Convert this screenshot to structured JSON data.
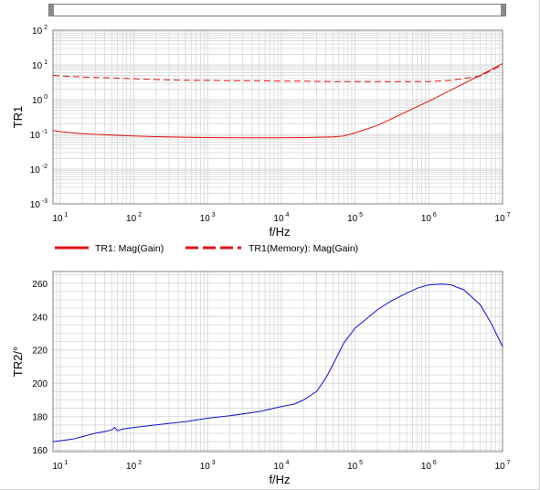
{
  "colors": {
    "tr1_line": "#e01010",
    "tr2_line": "#1010cc",
    "grid": "#d8d8d8",
    "axis": "#808080",
    "scrollbar_border": "#7a7a7a",
    "scrollbar_thumb": "#8c8c8c"
  },
  "chart_data": [
    {
      "type": "line",
      "xlabel": "f/Hz",
      "ylabel": "TR1",
      "x_scale": "log",
      "y_scale": "log",
      "xlim": [
        8,
        10000000
      ],
      "ylim": [
        0.001,
        100
      ],
      "grid": true,
      "legend_position": "below-plot",
      "x_ticks": [
        {
          "base": "10",
          "exp": "1"
        },
        {
          "base": "10",
          "exp": "2"
        },
        {
          "base": "10",
          "exp": "3"
        },
        {
          "base": "10",
          "exp": "4"
        },
        {
          "base": "10",
          "exp": "5"
        },
        {
          "base": "10",
          "exp": "6"
        },
        {
          "base": "10",
          "exp": "7"
        }
      ],
      "y_ticks": [
        {
          "base": "10",
          "exp": "-3"
        },
        {
          "base": "10",
          "exp": "-2"
        },
        {
          "base": "10",
          "exp": "-1"
        },
        {
          "base": "10",
          "exp": "0"
        },
        {
          "base": "10",
          "exp": "1"
        },
        {
          "base": "10",
          "exp": "2"
        }
      ],
      "series": [
        {
          "name": "TR1: Mag(Gain)",
          "style": "solid",
          "color": "#e01010",
          "x": [
            8,
            10,
            20,
            50,
            100,
            200,
            500,
            1000,
            2000,
            5000,
            10000,
            20000,
            50000,
            70000,
            100000,
            200000,
            500000,
            1000000,
            2000000,
            5000000,
            10000000
          ],
          "y": [
            0.13,
            0.12,
            0.105,
            0.095,
            0.09,
            0.086,
            0.083,
            0.081,
            0.08,
            0.08,
            0.08,
            0.081,
            0.085,
            0.09,
            0.11,
            0.18,
            0.45,
            0.9,
            1.9,
            5.0,
            11
          ]
        },
        {
          "name": "TR1(Memory): Mag(Gain)",
          "style": "dashed",
          "color": "#e01010",
          "x": [
            8,
            10,
            20,
            50,
            100,
            200,
            500,
            1000,
            2000,
            5000,
            10000,
            20000,
            50000,
            100000,
            200000,
            500000,
            1000000,
            2000000,
            5000000,
            10000000
          ],
          "y": [
            5.0,
            4.8,
            4.5,
            4.2,
            4.0,
            3.8,
            3.6,
            3.6,
            3.5,
            3.5,
            3.4,
            3.4,
            3.3,
            3.3,
            3.3,
            3.3,
            3.3,
            3.6,
            4.8,
            10
          ]
        }
      ]
    },
    {
      "type": "line",
      "xlabel": "f/Hz",
      "ylabel": "TR2/°",
      "x_scale": "log",
      "y_scale": "linear",
      "xlim": [
        8,
        10000000
      ],
      "ylim": [
        159,
        267
      ],
      "grid": true,
      "x_ticks": [
        {
          "base": "10",
          "exp": "1"
        },
        {
          "base": "10",
          "exp": "2"
        },
        {
          "base": "10",
          "exp": "3"
        },
        {
          "base": "10",
          "exp": "4"
        },
        {
          "base": "10",
          "exp": "5"
        },
        {
          "base": "10",
          "exp": "6"
        },
        {
          "base": "10",
          "exp": "7"
        }
      ],
      "y_ticks": [
        "160",
        "180",
        "200",
        "220",
        "240",
        "260"
      ],
      "y_tick_values": [
        160,
        180,
        200,
        220,
        240,
        260
      ],
      "series": [
        {
          "color": "#1010cc",
          "x": [
            8,
            10,
            15,
            20,
            30,
            40,
            50,
            55,
            60,
            70,
            100,
            200,
            500,
            1000,
            2000,
            5000,
            10000,
            15000,
            20000,
            30000,
            40000,
            50000,
            70000,
            100000,
            200000,
            300000,
            500000,
            700000,
            1000000,
            1500000,
            2000000,
            3000000,
            5000000,
            7000000,
            10000000
          ],
          "y": [
            165,
            165.5,
            166.5,
            168,
            170,
            171,
            172,
            173.5,
            171.5,
            172.5,
            173.5,
            175,
            177,
            179,
            180.5,
            183,
            186,
            187.5,
            190,
            195,
            203,
            211,
            224,
            233,
            244,
            249,
            254,
            257,
            259,
            259.5,
            259,
            256,
            247,
            236,
            222
          ]
        }
      ]
    }
  ]
}
